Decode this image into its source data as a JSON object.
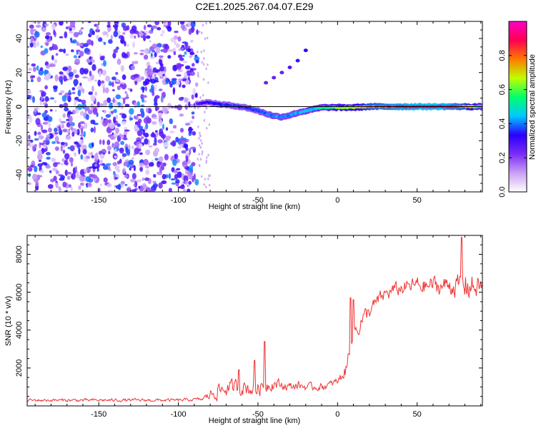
{
  "figure_title": "C2E1.2025.267.04.07.E29",
  "chart_data": [
    {
      "type": "heatmap",
      "title": "C2E1.2025.267.04.07.E29",
      "xlabel": "Height of straight line (km)",
      "ylabel": "Frequency (Hz)",
      "xlim": [
        -195,
        91
      ],
      "ylim": [
        -50,
        50
      ],
      "xticks": [
        -150,
        -100,
        -50,
        0,
        50
      ],
      "yticks": [
        -40,
        -20,
        0,
        20,
        40
      ],
      "colorbar_label": "Normalized spectral amplitude",
      "colorbar_range": [
        0,
        1
      ],
      "colorbar_ticks": [
        "0.0",
        "0.2",
        "0.4",
        "0.6",
        "0.8"
      ],
      "colorbar_colors": [
        "#ffffff",
        "#c9a0f5",
        "#7b2cf5",
        "#2a00ff",
        "#00c8ff",
        "#00ff6a",
        "#bfff00",
        "#ff7a00",
        "#ff0050",
        "#ff00c8"
      ],
      "noise_region_x": [
        -195,
        -88
      ],
      "ridge": {
        "x": [
          -88,
          -82,
          -75,
          -65,
          -55,
          -45,
          -40,
          -35,
          -30,
          -25,
          -20,
          -15,
          -10,
          -5,
          0,
          10,
          20,
          30,
          40,
          50,
          60,
          70,
          80,
          91
        ],
        "y": [
          1.5,
          2.5,
          1.5,
          0.5,
          -1.0,
          -4.0,
          -5.5,
          -6.0,
          -5.0,
          -3.5,
          -2.5,
          -1.5,
          -0.5,
          -0.5,
          -0.5,
          -0.5,
          0.0,
          0.0,
          0.0,
          0.0,
          0.0,
          0.0,
          0.0,
          0.0
        ],
        "amplitude": [
          0.3,
          0.35,
          0.38,
          0.4,
          0.4,
          0.42,
          0.45,
          0.45,
          0.45,
          0.45,
          0.48,
          0.5,
          0.55,
          0.6,
          0.65,
          0.7,
          0.85,
          0.9,
          0.95,
          0.98,
          1.0,
          0.95,
          0.85,
          0.5
        ]
      },
      "secondary_track": {
        "x": [
          -45,
          -40,
          -35,
          -30,
          -25,
          -20
        ],
        "y": [
          14,
          17,
          20,
          23,
          27,
          33
        ],
        "amplitude": [
          0.25,
          0.25,
          0.25,
          0.28,
          0.3,
          0.32
        ]
      }
    },
    {
      "type": "line",
      "xlabel": "Height of straight line (km)",
      "ylabel": "SNR (10 * v/v)",
      "xlim": [
        -195,
        91
      ],
      "ylim": [
        0,
        9000
      ],
      "xticks": [
        -150,
        -100,
        -50,
        0,
        50
      ],
      "yticks": [
        2000,
        4000,
        6000,
        8000
      ],
      "series": [
        {
          "name": "SNR",
          "color": "#ee3333",
          "x": [
            -195,
            -150,
            -100,
            -85,
            -80,
            -75,
            -70,
            -65,
            -60,
            -55,
            -50,
            -45,
            -40,
            -35,
            -30,
            -25,
            -20,
            -15,
            -10,
            -5,
            0,
            3,
            6,
            8,
            10,
            12,
            15,
            20,
            25,
            30,
            35,
            40,
            45,
            50,
            55,
            60,
            65,
            70,
            75,
            80,
            85,
            91
          ],
          "y": [
            300,
            300,
            300,
            350,
            600,
            800,
            900,
            1000,
            1000,
            900,
            900,
            1100,
            1200,
            1100,
            1000,
            1100,
            1000,
            1000,
            1000,
            1100,
            1300,
            1600,
            2000,
            3500,
            4000,
            4000,
            4500,
            5000,
            5500,
            5900,
            6100,
            6200,
            6300,
            6400,
            6300,
            6400,
            6300,
            6400,
            6300,
            6400,
            6300,
            6300
          ],
          "noise_amplitude": [
            120,
            120,
            120,
            130,
            450,
            650,
            600,
            600,
            600,
            600,
            600,
            600,
            500,
            400,
            350,
            350,
            300,
            300,
            300,
            300,
            300,
            400,
            700,
            1200,
            900,
            800,
            700,
            600,
            600,
            600,
            600,
            600,
            600,
            700,
            700,
            700,
            800,
            800,
            900,
            1200,
            1100,
            700
          ]
        }
      ],
      "spikes": [
        {
          "x": -62,
          "y": 1900
        },
        {
          "x": -52,
          "y": 2400
        },
        {
          "x": -46,
          "y": 3400
        },
        {
          "x": 8,
          "y": 5700
        },
        {
          "x": 10,
          "y": 5600
        },
        {
          "x": 78,
          "y": 8900
        }
      ]
    }
  ]
}
